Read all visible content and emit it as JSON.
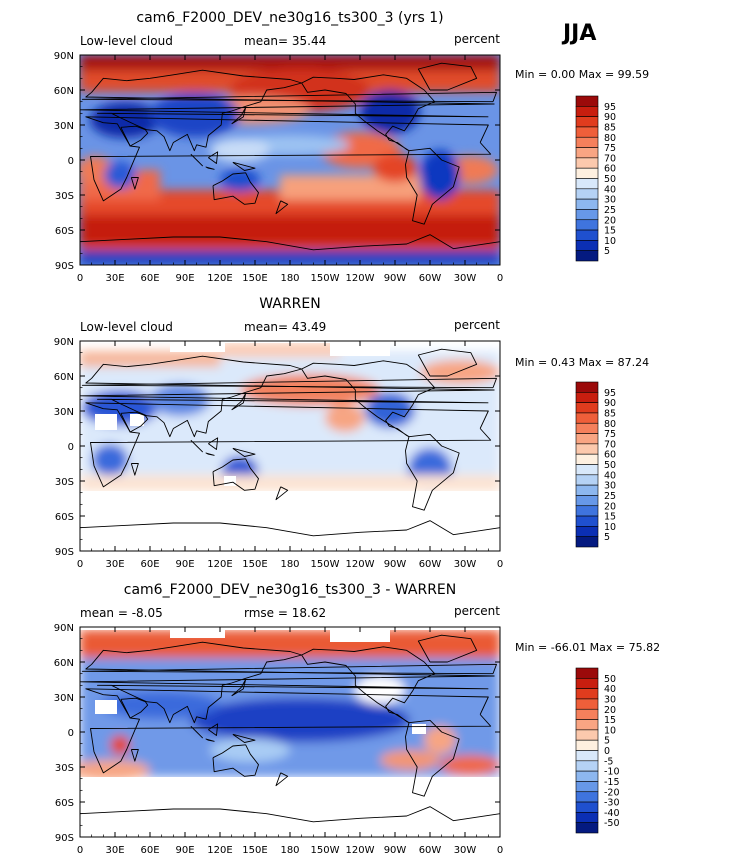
{
  "season_label": "JJA",
  "lat_labels": [
    "90N",
    "60N",
    "30N",
    "0",
    "30S",
    "60S",
    "90S"
  ],
  "lon_labels": [
    "0",
    "30E",
    "60E",
    "90E",
    "120E",
    "150E",
    "180",
    "150W",
    "120W",
    "90W",
    "60W",
    "30W",
    "0"
  ],
  "panels": [
    {
      "title": "cam6_F2000_DEV_ne30g16_ts300_3 (yrs 1)",
      "left_label": "Low-level cloud",
      "center_label": "mean=  35.44",
      "right_label": "percent",
      "min_max_label": "Min =   0.00 Max =  99.59",
      "colorbar_levels": [
        "95",
        "90",
        "85",
        "80",
        "75",
        "70",
        "60",
        "50",
        "40",
        "30",
        "25",
        "20",
        "15",
        "10",
        "5"
      ],
      "colorbar_colors": [
        "#9b0a0a",
        "#c81e0f",
        "#e03c1e",
        "#ef5f3a",
        "#f5805c",
        "#f9a583",
        "#fcc9ad",
        "#fef0e0",
        "#d8e8fa",
        "#b5d2f5",
        "#8db7ef",
        "#6798e8",
        "#3f74de",
        "#1f50cf",
        "#0b2fb4",
        "#041a80"
      ]
    },
    {
      "title": "WARREN",
      "left_label": "Low-level cloud",
      "center_label": "mean=  43.49",
      "right_label": "percent",
      "min_max_label": "Min =   0.43 Max =  87.24",
      "colorbar_levels": [
        "95",
        "90",
        "85",
        "80",
        "75",
        "70",
        "60",
        "50",
        "40",
        "30",
        "25",
        "20",
        "15",
        "10",
        "5"
      ],
      "colorbar_colors": [
        "#9b0a0a",
        "#c81e0f",
        "#e03c1e",
        "#ef5f3a",
        "#f5805c",
        "#f9a583",
        "#fcc9ad",
        "#fef0e0",
        "#d8e8fa",
        "#b5d2f5",
        "#8db7ef",
        "#6798e8",
        "#3f74de",
        "#1f50cf",
        "#0b2fb4",
        "#041a80"
      ]
    },
    {
      "title": "cam6_F2000_DEV_ne30g16_ts300_3 - WARREN",
      "left_label": "mean =  -8.05",
      "center_label": "rmse =  18.62",
      "right_label": "percent",
      "min_max_label": "Min = -66.01 Max =  75.82",
      "colorbar_levels": [
        "50",
        "40",
        "30",
        "20",
        "15",
        "10",
        "5",
        "0",
        "-5",
        "-10",
        "-15",
        "-20",
        "-30",
        "-40",
        "-50"
      ],
      "colorbar_colors": [
        "#9b0a0a",
        "#c81e0f",
        "#e03c1e",
        "#ef5f3a",
        "#f5805c",
        "#f9a583",
        "#fcc9ad",
        "#fef0e0",
        "#d8e8fa",
        "#b5d2f5",
        "#8db7ef",
        "#6798e8",
        "#3f74de",
        "#1f50cf",
        "#0b2fb4",
        "#041a80"
      ]
    }
  ]
}
